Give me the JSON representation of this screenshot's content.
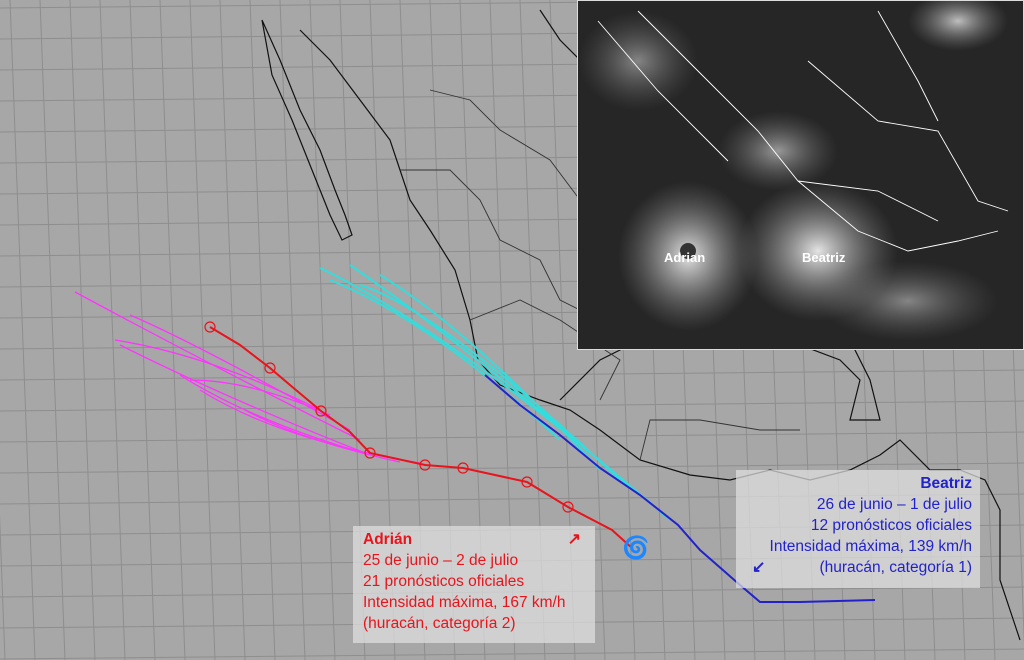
{
  "inset": {
    "labels": [
      "Adrian",
      "Beatriz"
    ]
  },
  "storms": [
    {
      "name": "Adrián",
      "dates": "25 de junio – 2 de julio",
      "forecasts": "21 pronósticos oficiales",
      "intensity": "Intensidad máxima, 167 km/h",
      "category": "(huracán, categoría 2)",
      "arrow": "↗",
      "color": "#e8141c",
      "forecast_color": "#ff33ff"
    },
    {
      "name": "Beatriz",
      "dates": "26 de junio – 1 de julio",
      "forecasts": "12 pronósticos oficiales",
      "intensity": "Intensidad máxima, 139 km/h",
      "category": "(huracán, categoría 1)",
      "arrow": "↙",
      "color": "#2222cc",
      "forecast_color": "#33dddd"
    }
  ]
}
